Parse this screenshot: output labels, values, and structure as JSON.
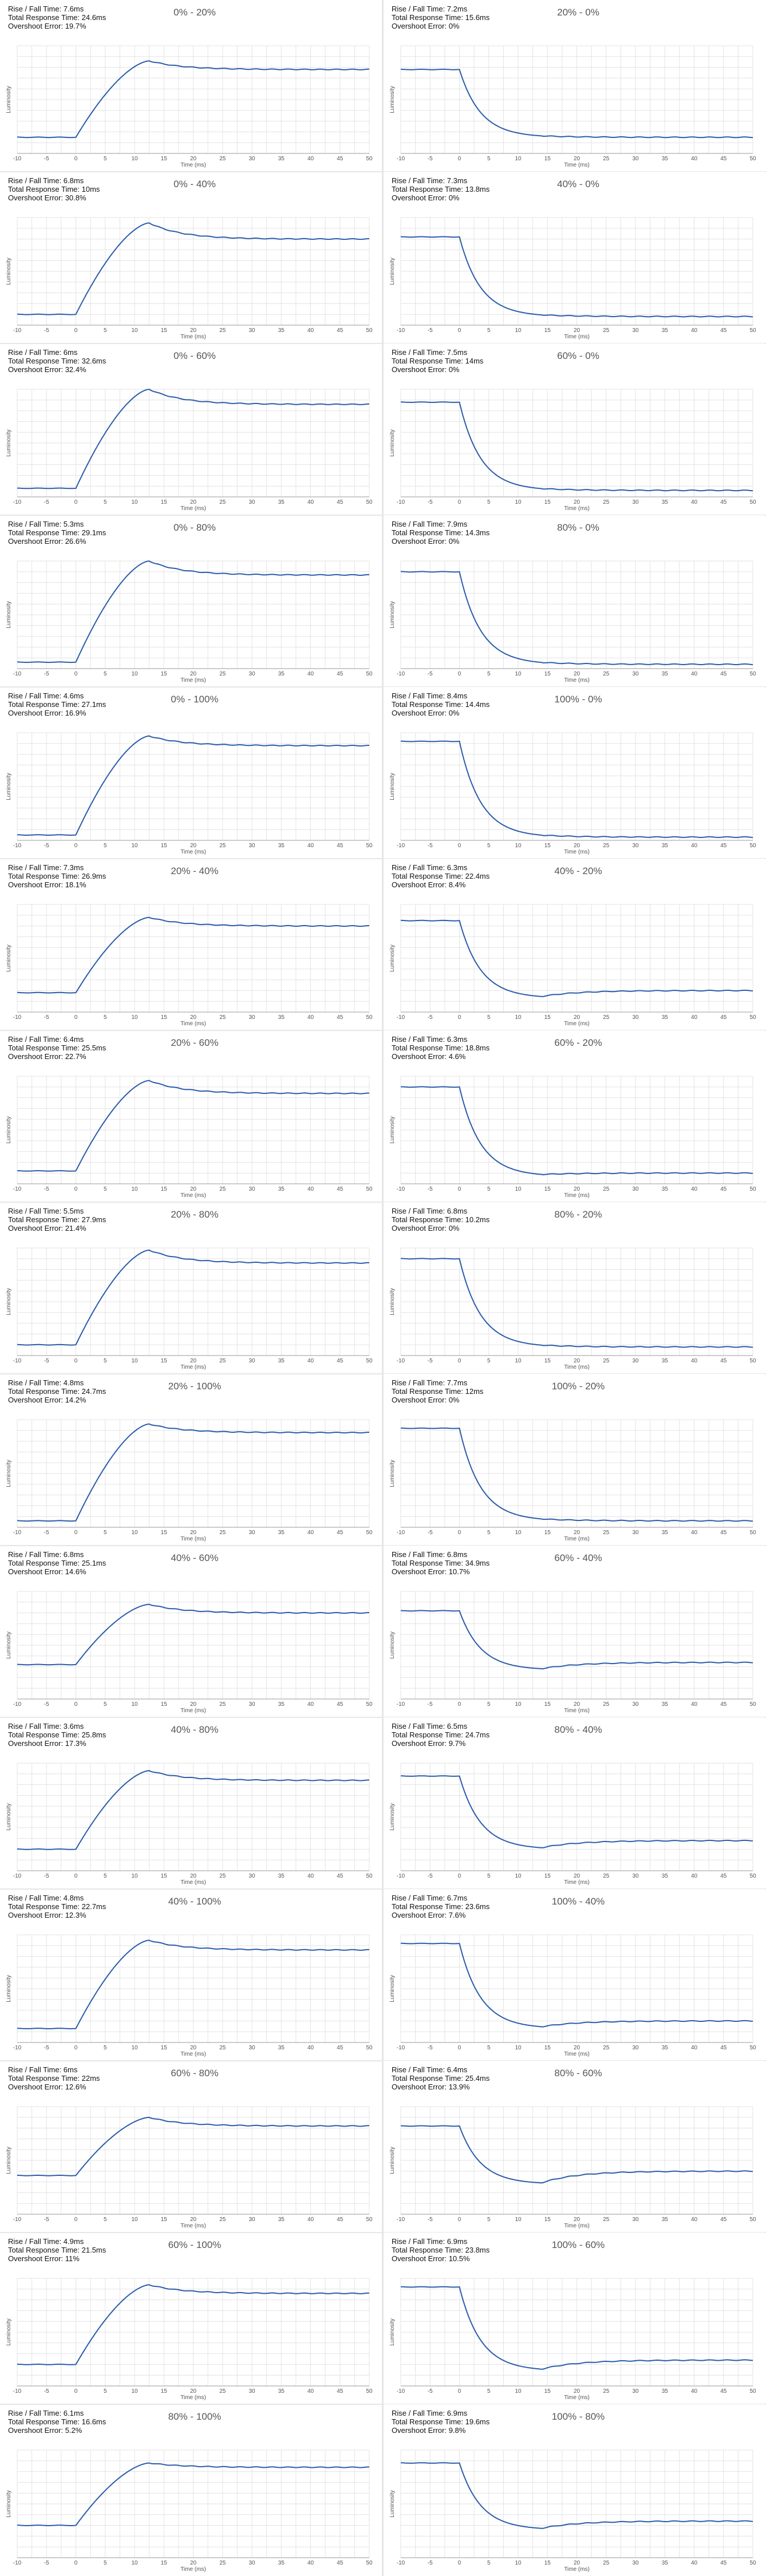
{
  "shared": {
    "xlabel": "Time (ms)",
    "ylabel": "Luminosity",
    "xticks": [
      -10,
      -5,
      0,
      5,
      10,
      15,
      20,
      25,
      30,
      35,
      40,
      45,
      50
    ],
    "xlim": [
      -10,
      50
    ],
    "line_color": "#2a5caa",
    "grid_color": "#e3e3e3"
  },
  "chart_data": [
    {
      "type": "line",
      "title": "0% - 20%",
      "stats": {
        "rise_fall": "Rise / Fall Time: 7.6ms",
        "total": "Total Response Time: 24.6ms",
        "overshoot": "Overshoot Error: 19.7%"
      },
      "start": 0.15,
      "end": 0.78,
      "peak": 0.86,
      "tpeak": 12.5,
      "direction": "rise"
    },
    {
      "type": "line",
      "title": "20% - 0%",
      "stats": {
        "rise_fall": "Rise / Fall Time: 7.2ms",
        "total": "Total Response Time: 15.6ms",
        "overshoot": "Overshoot Error: 0%"
      },
      "start": 0.78,
      "end": 0.15,
      "peak": 0.15,
      "tpeak": 10,
      "direction": "fall"
    },
    {
      "type": "line",
      "title": "0% - 40%",
      "stats": {
        "rise_fall": "Rise / Fall Time: 6.8ms",
        "total": "Total Response Time: 10ms",
        "overshoot": "Overshoot Error: 30.8%"
      },
      "start": 0.1,
      "end": 0.8,
      "peak": 0.95,
      "tpeak": 12.5,
      "direction": "rise"
    },
    {
      "type": "line",
      "title": "40% - 0%",
      "stats": {
        "rise_fall": "Rise / Fall Time: 7.3ms",
        "total": "Total Response Time: 13.8ms",
        "overshoot": "Overshoot Error: 0%"
      },
      "start": 0.82,
      "end": 0.08,
      "peak": 0.08,
      "tpeak": 10,
      "direction": "fall"
    },
    {
      "type": "line",
      "title": "0% - 60%",
      "stats": {
        "rise_fall": "Rise / Fall Time: 6ms",
        "total": "Total Response Time: 32.6ms",
        "overshoot": "Overshoot Error: 32.4%"
      },
      "start": 0.08,
      "end": 0.86,
      "peak": 1.0,
      "tpeak": 12.5,
      "direction": "rise"
    },
    {
      "type": "line",
      "title": "60% - 0%",
      "stats": {
        "rise_fall": "Rise / Fall Time: 7.5ms",
        "total": "Total Response Time: 14ms",
        "overshoot": "Overshoot Error: 0%"
      },
      "start": 0.88,
      "end": 0.06,
      "peak": 0.06,
      "tpeak": 10,
      "direction": "fall"
    },
    {
      "type": "line",
      "title": "0% - 80%",
      "stats": {
        "rise_fall": "Rise / Fall Time: 5.3ms",
        "total": "Total Response Time: 29.1ms",
        "overshoot": "Overshoot Error: 26.6%"
      },
      "start": 0.06,
      "end": 0.87,
      "peak": 1.0,
      "tpeak": 12.5,
      "direction": "rise"
    },
    {
      "type": "line",
      "title": "80% - 0%",
      "stats": {
        "rise_fall": "Rise / Fall Time: 7.9ms",
        "total": "Total Response Time: 14.3ms",
        "overshoot": "Overshoot Error: 0%"
      },
      "start": 0.9,
      "end": 0.04,
      "peak": 0.04,
      "tpeak": 10,
      "direction": "fall"
    },
    {
      "type": "line",
      "title": "0% - 100%",
      "stats": {
        "rise_fall": "Rise / Fall Time: 4.6ms",
        "total": "Total Response Time: 27.1ms",
        "overshoot": "Overshoot Error: 16.9%"
      },
      "start": 0.05,
      "end": 0.88,
      "peak": 0.97,
      "tpeak": 12.5,
      "direction": "rise"
    },
    {
      "type": "line",
      "title": "100% - 0%",
      "stats": {
        "rise_fall": "Rise / Fall Time: 8.4ms",
        "total": "Total Response Time: 14.4ms",
        "overshoot": "Overshoot Error: 0%"
      },
      "start": 0.92,
      "end": 0.03,
      "peak": 0.03,
      "tpeak": 10,
      "direction": "fall"
    },
    {
      "type": "line",
      "title": "20% - 40%",
      "stats": {
        "rise_fall": "Rise / Fall Time: 7.3ms",
        "total": "Total Response Time: 26.9ms",
        "overshoot": "Overshoot Error: 18.1%"
      },
      "start": 0.18,
      "end": 0.8,
      "peak": 0.88,
      "tpeak": 12.5,
      "direction": "rise"
    },
    {
      "type": "line",
      "title": "40% - 20%",
      "stats": {
        "rise_fall": "Rise / Fall Time: 6.3ms",
        "total": "Total Response Time: 22.4ms",
        "overshoot": "Overshoot Error: 8.4%"
      },
      "start": 0.85,
      "end": 0.2,
      "peak": 0.13,
      "tpeak": 10,
      "direction": "fall"
    },
    {
      "type": "line",
      "title": "20% - 60%",
      "stats": {
        "rise_fall": "Rise / Fall Time: 6.4ms",
        "total": "Total Response Time: 25.5ms",
        "overshoot": "Overshoot Error: 22.7%"
      },
      "start": 0.12,
      "end": 0.84,
      "peak": 0.96,
      "tpeak": 12.5,
      "direction": "rise"
    },
    {
      "type": "line",
      "title": "60% - 20%",
      "stats": {
        "rise_fall": "Rise / Fall Time: 6.3ms",
        "total": "Total Response Time: 18.8ms",
        "overshoot": "Overshoot Error: 4.6%"
      },
      "start": 0.9,
      "end": 0.1,
      "peak": 0.07,
      "tpeak": 10,
      "direction": "fall"
    },
    {
      "type": "line",
      "title": "20% - 80%",
      "stats": {
        "rise_fall": "Rise / Fall Time: 5.5ms",
        "total": "Total Response Time: 27.9ms",
        "overshoot": "Overshoot Error: 21.4%"
      },
      "start": 0.1,
      "end": 0.86,
      "peak": 0.98,
      "tpeak": 12.5,
      "direction": "rise"
    },
    {
      "type": "line",
      "title": "80% - 20%",
      "stats": {
        "rise_fall": "Rise / Fall Time: 6.8ms",
        "total": "Total Response Time: 10.2ms",
        "overshoot": "Overshoot Error: 0%"
      },
      "start": 0.9,
      "end": 0.08,
      "peak": 0.08,
      "tpeak": 10,
      "direction": "fall"
    },
    {
      "type": "line",
      "title": "20% - 100%",
      "stats": {
        "rise_fall": "Rise / Fall Time: 4.8ms",
        "total": "Total Response Time: 24.7ms",
        "overshoot": "Overshoot Error: 14.2%"
      },
      "start": 0.06,
      "end": 0.88,
      "peak": 0.96,
      "tpeak": 12.5,
      "direction": "rise"
    },
    {
      "type": "line",
      "title": "100% - 20%",
      "stats": {
        "rise_fall": "Rise / Fall Time: 7.7ms",
        "total": "Total Response Time: 12ms",
        "overshoot": "Overshoot Error: 0%"
      },
      "start": 0.92,
      "end": 0.06,
      "peak": 0.06,
      "tpeak": 10,
      "direction": "fall"
    },
    {
      "type": "line",
      "title": "40% - 60%",
      "stats": {
        "rise_fall": "Rise / Fall Time: 6.8ms",
        "total": "Total Response Time: 25.1ms",
        "overshoot": "Overshoot Error: 14.6%"
      },
      "start": 0.32,
      "end": 0.8,
      "peak": 0.88,
      "tpeak": 12.5,
      "direction": "rise"
    },
    {
      "type": "line",
      "title": "60% - 40%",
      "stats": {
        "rise_fall": "Rise / Fall Time: 6.8ms",
        "total": "Total Response Time: 34.9ms",
        "overshoot": "Overshoot Error: 10.7%"
      },
      "start": 0.82,
      "end": 0.34,
      "peak": 0.27,
      "tpeak": 10,
      "direction": "fall"
    },
    {
      "type": "line",
      "title": "40% - 80%",
      "stats": {
        "rise_fall": "Rise / Fall Time: 3.6ms",
        "total": "Total Response Time: 25.8ms",
        "overshoot": "Overshoot Error: 17.3%"
      },
      "start": 0.2,
      "end": 0.84,
      "peak": 0.93,
      "tpeak": 12.5,
      "direction": "rise"
    },
    {
      "type": "line",
      "title": "80% - 40%",
      "stats": {
        "rise_fall": "Rise / Fall Time: 6.5ms",
        "total": "Total Response Time: 24.7ms",
        "overshoot": "Overshoot Error: 9.7%"
      },
      "start": 0.88,
      "end": 0.28,
      "peak": 0.2,
      "tpeak": 10,
      "direction": "fall"
    },
    {
      "type": "line",
      "title": "40% - 100%",
      "stats": {
        "rise_fall": "Rise / Fall Time: 4.8ms",
        "total": "Total Response Time: 22.7ms",
        "overshoot": "Overshoot Error: 12.3%"
      },
      "start": 0.13,
      "end": 0.86,
      "peak": 0.95,
      "tpeak": 12.5,
      "direction": "rise"
    },
    {
      "type": "line",
      "title": "100% - 40%",
      "stats": {
        "rise_fall": "Rise / Fall Time: 6.7ms",
        "total": "Total Response Time: 23.6ms",
        "overshoot": "Overshoot Error: 7.6%"
      },
      "start": 0.92,
      "end": 0.2,
      "peak": 0.13,
      "tpeak": 10,
      "direction": "fall"
    },
    {
      "type": "line",
      "title": "60% - 80%",
      "stats": {
        "rise_fall": "Rise / Fall Time: 6ms",
        "total": "Total Response Time: 22ms",
        "overshoot": "Overshoot Error: 12.6%"
      },
      "start": 0.36,
      "end": 0.82,
      "peak": 0.9,
      "tpeak": 12.5,
      "direction": "rise"
    },
    {
      "type": "line",
      "title": "80% - 60%",
      "stats": {
        "rise_fall": "Rise / Fall Time: 6.4ms",
        "total": "Total Response Time: 25.4ms",
        "overshoot": "Overshoot Error: 13.9%"
      },
      "start": 0.82,
      "end": 0.4,
      "peak": 0.28,
      "tpeak": 10,
      "direction": "fall"
    },
    {
      "type": "line",
      "title": "60% - 100%",
      "stats": {
        "rise_fall": "Rise / Fall Time: 4.9ms",
        "total": "Total Response Time: 21.5ms",
        "overshoot": "Overshoot Error: 11%"
      },
      "start": 0.2,
      "end": 0.86,
      "peak": 0.94,
      "tpeak": 12.5,
      "direction": "rise"
    },
    {
      "type": "line",
      "title": "100% - 60%",
      "stats": {
        "rise_fall": "Rise / Fall Time: 6.9ms",
        "total": "Total Response Time: 23.8ms",
        "overshoot": "Overshoot Error: 10.5%"
      },
      "start": 0.92,
      "end": 0.24,
      "peak": 0.14,
      "tpeak": 10,
      "direction": "fall"
    },
    {
      "type": "line",
      "title": "80% - 100%",
      "stats": {
        "rise_fall": "Rise / Fall Time: 6.1ms",
        "total": "Total Response Time: 16.6ms",
        "overshoot": "Overshoot Error: 5.2%"
      },
      "start": 0.3,
      "end": 0.84,
      "peak": 0.88,
      "tpeak": 12.5,
      "direction": "rise"
    },
    {
      "type": "line",
      "title": "100% - 80%",
      "stats": {
        "rise_fall": "Rise / Fall Time: 6.9ms",
        "total": "Total Response Time: 19.6ms",
        "overshoot": "Overshoot Error: 9.8%"
      },
      "start": 0.88,
      "end": 0.34,
      "peak": 0.26,
      "tpeak": 10,
      "direction": "fall"
    }
  ]
}
